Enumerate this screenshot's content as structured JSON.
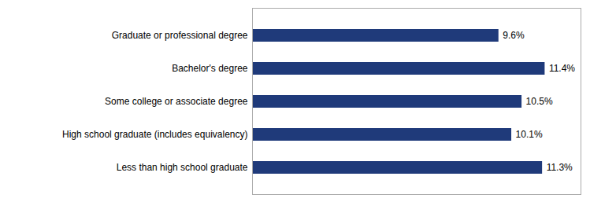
{
  "chart_data": {
    "type": "bar",
    "orientation": "horizontal",
    "categories": [
      "Less than high school graduate",
      "High school graduate (includes equivalency)",
      "Some college or associate degree",
      "Bachelor's degree",
      "Graduate or professional degree"
    ],
    "values": [
      11.3,
      10.1,
      10.5,
      11.4,
      9.6
    ],
    "value_labels": [
      "11.3%",
      "10.1%",
      "10.5%",
      "11.4%",
      "9.6%"
    ],
    "data_labels": true,
    "color": "#1F3A7A",
    "xlim": [
      0,
      12.8
    ],
    "tick_labels": "y",
    "grid": false
  }
}
